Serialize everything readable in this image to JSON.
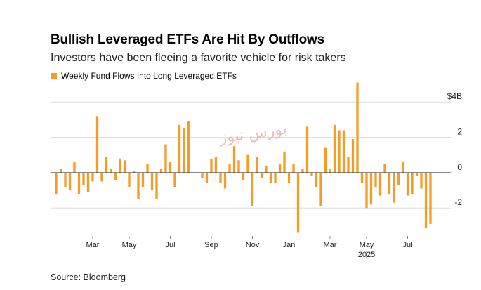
{
  "title": "Bullish Leveraged ETFs Are Hit By Outflows",
  "subtitle": "Investors have been fleeing a favorite vehicle for risk takers",
  "source": "Source: Bloomberg",
  "watermark": "بورس نیوز",
  "colors": {
    "bar": "#f39c27",
    "grid": "#dddddd",
    "zero": "#444444",
    "text": "#222222"
  },
  "chart_data": {
    "type": "bar",
    "title": "Bullish Leveraged ETFs Are Hit By Outflows",
    "legend": [
      {
        "name": "Weekly Fund Flows Into Long Leveraged ETFs",
        "color": "#f39c27"
      }
    ],
    "legend_position": "top-left",
    "xlabel": "",
    "ylabel": "",
    "ylim": [
      -3.5,
      5.2
    ],
    "yticks": [
      {
        "value": 4,
        "label": "$4B"
      },
      {
        "value": 2,
        "label": "2"
      },
      {
        "value": 0,
        "label": "0"
      },
      {
        "value": -2,
        "label": "-2"
      }
    ],
    "xticks": [
      {
        "index": 8,
        "label": "Mar"
      },
      {
        "index": 16,
        "label": "May"
      },
      {
        "index": 25,
        "label": "Jul"
      },
      {
        "index": 34,
        "label": "Sep"
      },
      {
        "index": 43,
        "label": "Nov"
      },
      {
        "index": 51,
        "label": "Jan"
      },
      {
        "index": 60,
        "label": "Mar"
      },
      {
        "index": 68,
        "label": "May"
      },
      {
        "index": 77,
        "label": "Jul"
      }
    ],
    "year_markers": [
      {
        "index": 51,
        "label": ""
      },
      {
        "index": 68,
        "label": "2025"
      }
    ],
    "series": [
      {
        "name": "Weekly Fund Flows Into Long Leveraged ETFs",
        "values": [
          -1.2,
          0.2,
          -0.8,
          -1.0,
          0.6,
          -1.2,
          -0.7,
          -1.1,
          -0.5,
          3.2,
          -0.5,
          0.9,
          0.2,
          -0.4,
          0.8,
          0.7,
          -0.8,
          0.1,
          -1.5,
          -0.8,
          0.5,
          -1.0,
          -1.5,
          0.2,
          1.6,
          0.6,
          -0.8,
          2.7,
          2.5,
          2.9,
          0.0,
          0.0,
          -0.3,
          -0.6,
          0.8,
          0.9,
          -0.6,
          -0.9,
          0.5,
          1.5,
          0.7,
          -0.4,
          1.0,
          -1.9,
          0.9,
          -0.3,
          0.4,
          -0.6,
          -0.6,
          0.5,
          1.2,
          -0.6,
          0.5,
          -3.4,
          0.2,
          2.6,
          -0.2,
          -0.8,
          -1.9,
          1.4,
          0.2,
          2.7,
          2.4,
          2.4,
          0.9,
          1.9,
          5.1,
          -0.6,
          -2.0,
          -1.8,
          -0.8,
          -1.3,
          0.5,
          -1.2,
          -1.7,
          -0.7,
          0.6,
          -1.3,
          -1.2,
          -0.2,
          -0.9,
          -3.1,
          -2.9
        ]
      }
    ]
  }
}
